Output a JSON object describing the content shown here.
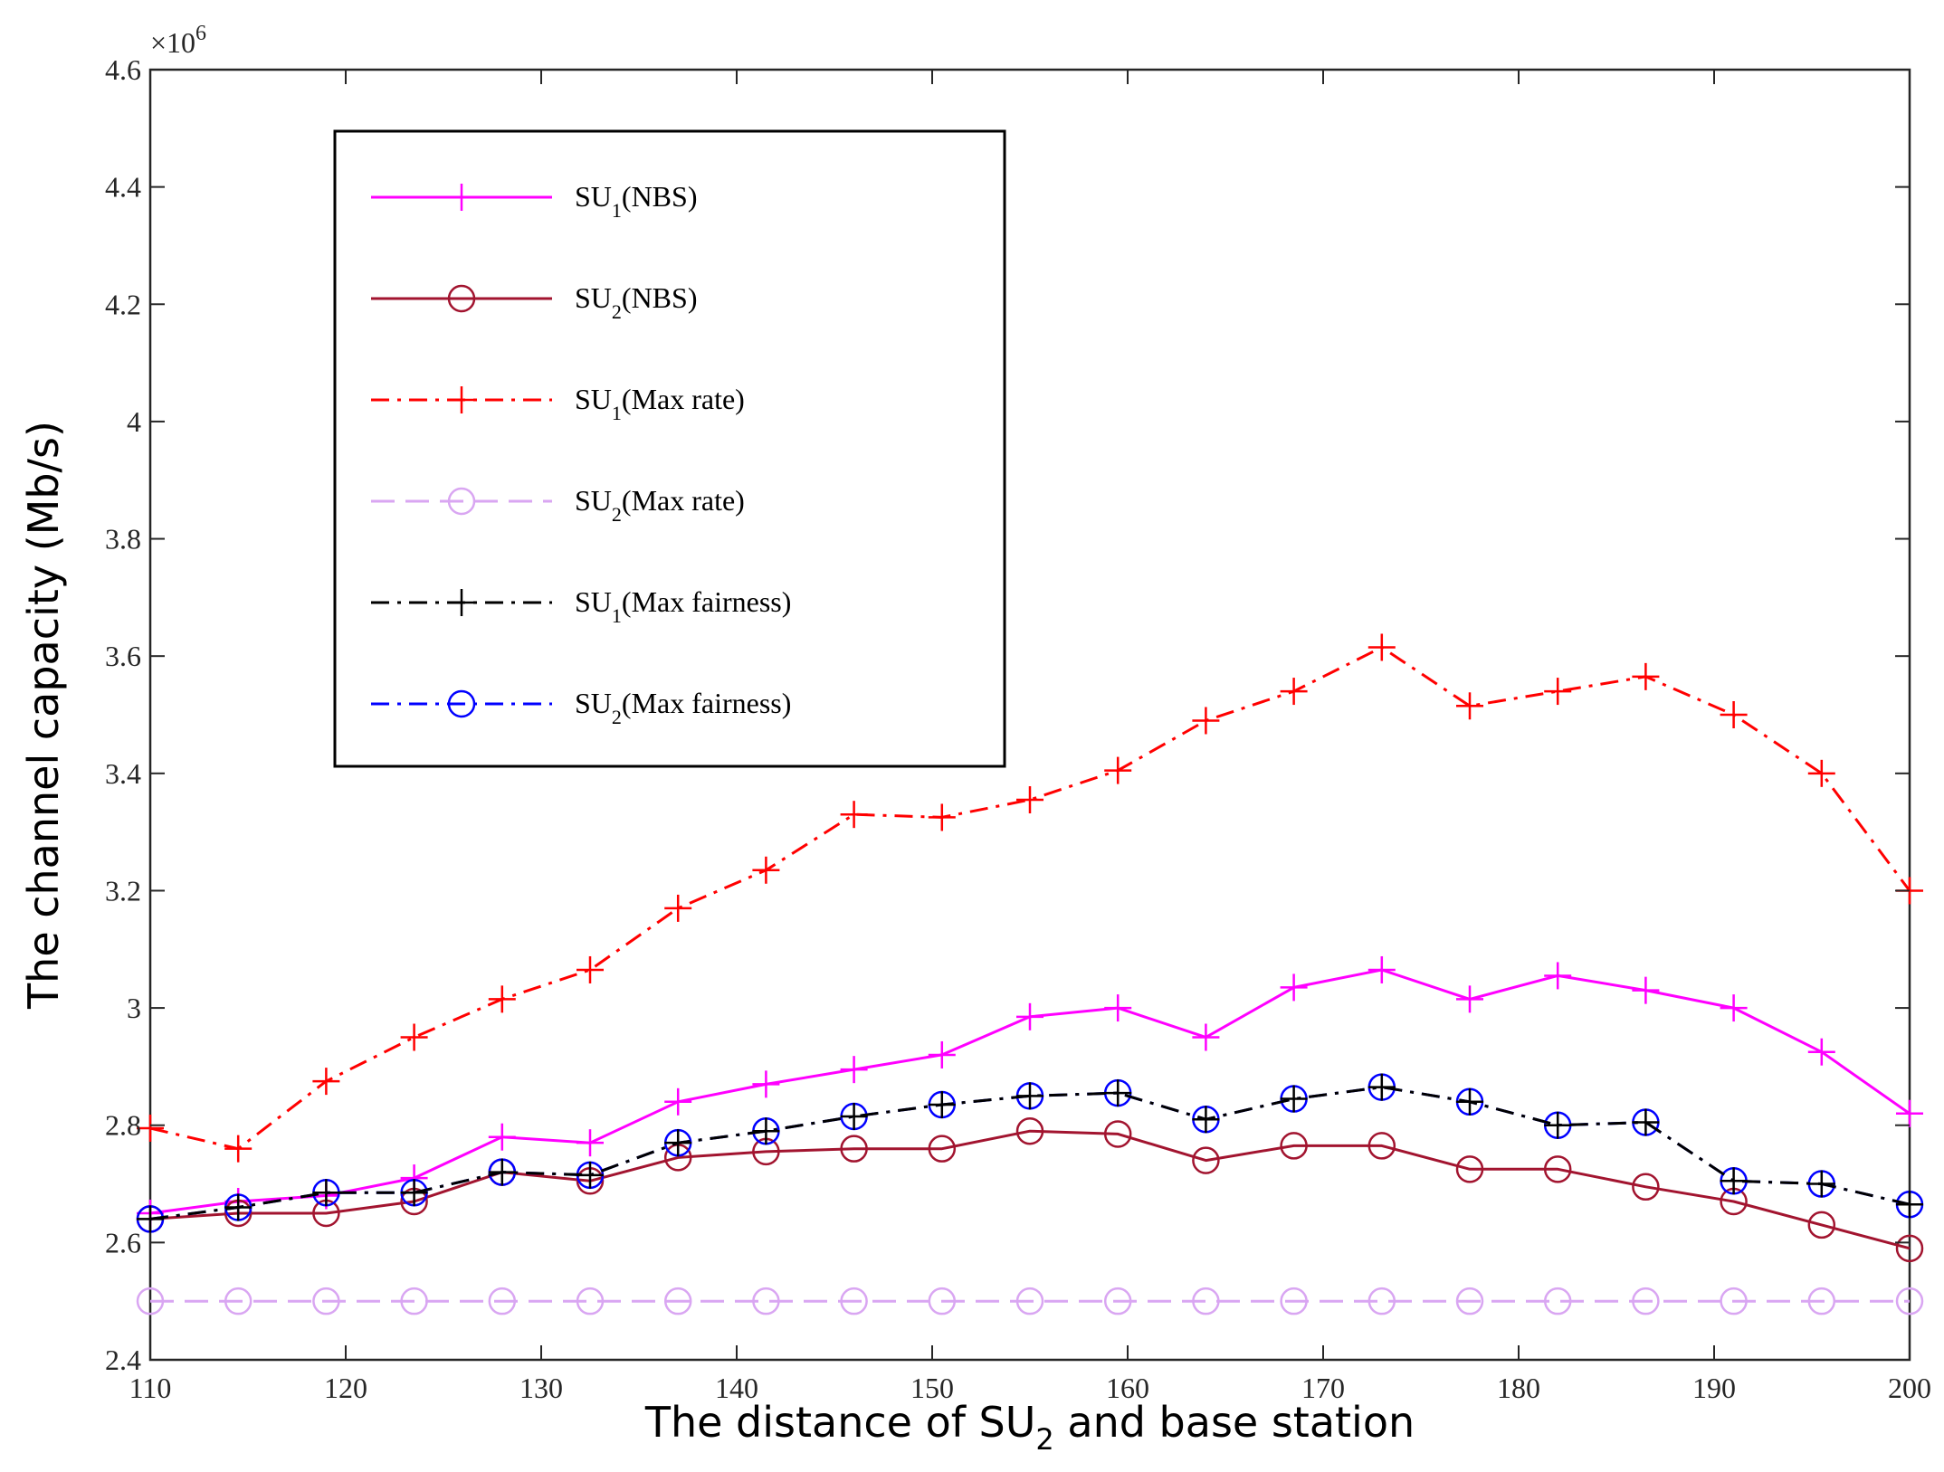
{
  "chart_data": {
    "type": "line",
    "title": "",
    "xlabel_parts": [
      "The distance of SU",
      "2",
      " and base station"
    ],
    "ylabel": "The channel capacity (Mb/s)",
    "y_exponent_prefix": "×10",
    "y_exponent_power": "6",
    "xlim": [
      110,
      200
    ],
    "ylim": [
      2.4,
      4.6
    ],
    "y_scale_factor": 1000000,
    "x_ticks": [
      110,
      120,
      130,
      140,
      150,
      160,
      170,
      180,
      190,
      200
    ],
    "x_tick_labels": [
      "110",
      "120",
      "130",
      "140",
      "150",
      "160",
      "170",
      "180",
      "190",
      "200"
    ],
    "y_ticks": [
      2.4,
      2.6,
      2.8,
      3.0,
      3.2,
      3.4,
      3.6,
      3.8,
      4.0,
      4.2,
      4.4,
      4.6
    ],
    "y_tick_labels": [
      "2.4",
      "2.6",
      "2.8",
      "3",
      "3.2",
      "3.4",
      "3.6",
      "3.8",
      "4",
      "4.2",
      "4.4",
      "4.6"
    ],
    "grid": false,
    "legend_position": "top-left",
    "x": [
      110,
      114.5,
      119,
      123.5,
      128,
      132.5,
      137,
      141.5,
      146,
      150.5,
      155,
      159.5,
      164,
      168.5,
      173,
      177.5,
      182,
      186.5,
      191,
      195.5,
      200
    ],
    "series": [
      {
        "name_main": "SU",
        "name_sub": "1",
        "name_suffix": "(NBS)",
        "color": "#ff00ff",
        "dash": "solid",
        "marker": "plus",
        "values": [
          2.65,
          2.67,
          2.68,
          2.71,
          2.78,
          2.77,
          2.84,
          2.87,
          2.895,
          2.92,
          2.985,
          3.0,
          2.95,
          3.035,
          3.065,
          3.015,
          3.055,
          3.03,
          3.0,
          2.925,
          2.82
        ]
      },
      {
        "name_main": "SU",
        "name_sub": "2",
        "name_suffix": "(NBS)",
        "color": "#a2142f",
        "dash": "solid",
        "marker": "circle",
        "values": [
          2.64,
          2.65,
          2.65,
          2.67,
          2.72,
          2.705,
          2.745,
          2.755,
          2.76,
          2.76,
          2.79,
          2.785,
          2.74,
          2.765,
          2.765,
          2.725,
          2.725,
          2.695,
          2.67,
          2.63,
          2.59
        ]
      },
      {
        "name_main": "SU",
        "name_sub": "1",
        "name_suffix": "(Max rate)",
        "color": "#ff0000",
        "dash": "dashdot",
        "marker": "plus",
        "values": [
          2.795,
          2.76,
          2.875,
          2.95,
          3.015,
          3.065,
          3.17,
          3.235,
          3.33,
          3.325,
          3.355,
          3.405,
          3.49,
          3.54,
          3.615,
          3.515,
          3.54,
          3.565,
          3.5,
          3.4,
          3.2
        ]
      },
      {
        "name_main": "SU",
        "name_sub": "2",
        "name_suffix": "(Max rate)",
        "color": "#d9a6f2",
        "dash": "dashed",
        "marker": "circle",
        "values": [
          2.5,
          2.5,
          2.5,
          2.5,
          2.5,
          2.5,
          2.5,
          2.5,
          2.5,
          2.5,
          2.5,
          2.5,
          2.5,
          2.5,
          2.5,
          2.5,
          2.5,
          2.5,
          2.5,
          2.5,
          2.5
        ]
      },
      {
        "name_main": "SU",
        "name_sub": "1",
        "name_suffix": "(Max fairness)",
        "color": "#000000",
        "dash": "dashdot",
        "marker": "plus",
        "values": [
          2.64,
          2.66,
          2.685,
          2.685,
          2.72,
          2.715,
          2.77,
          2.79,
          2.815,
          2.835,
          2.85,
          2.855,
          2.81,
          2.845,
          2.865,
          2.84,
          2.8,
          2.805,
          2.705,
          2.7,
          2.665
        ]
      },
      {
        "name_main": "SU",
        "name_sub": "2",
        "name_suffix": "(Max fairness)",
        "color": "#0000ff",
        "dash": "dashdot",
        "marker": "circle",
        "values": [
          2.64,
          2.66,
          2.685,
          2.685,
          2.72,
          2.715,
          2.77,
          2.79,
          2.815,
          2.835,
          2.85,
          2.855,
          2.81,
          2.845,
          2.865,
          2.84,
          2.8,
          2.805,
          2.705,
          2.7,
          2.665
        ]
      }
    ]
  }
}
